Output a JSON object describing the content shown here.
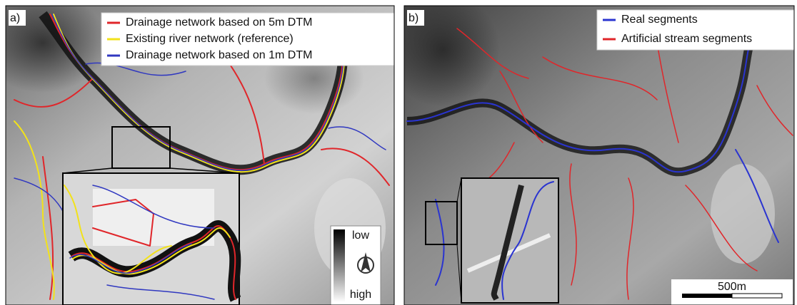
{
  "panel_a": {
    "label": "a)",
    "legend": [
      {
        "name": "Drainage network based on 5m DTM",
        "color": "#e0262a"
      },
      {
        "name": "Existing river network (reference)",
        "color": "#f2e21a"
      },
      {
        "name": "Drainage network based on 1m DTM",
        "color": "#3038c0"
      }
    ],
    "colorbar": {
      "top": "low",
      "bottom": "high"
    }
  },
  "panel_b": {
    "label": "b)",
    "legend": [
      {
        "name": "Real segments",
        "color": "#2a34d0"
      },
      {
        "name": "Artificial stream segments",
        "color": "#e0262a"
      }
    ],
    "scale_bar": "500m"
  }
}
